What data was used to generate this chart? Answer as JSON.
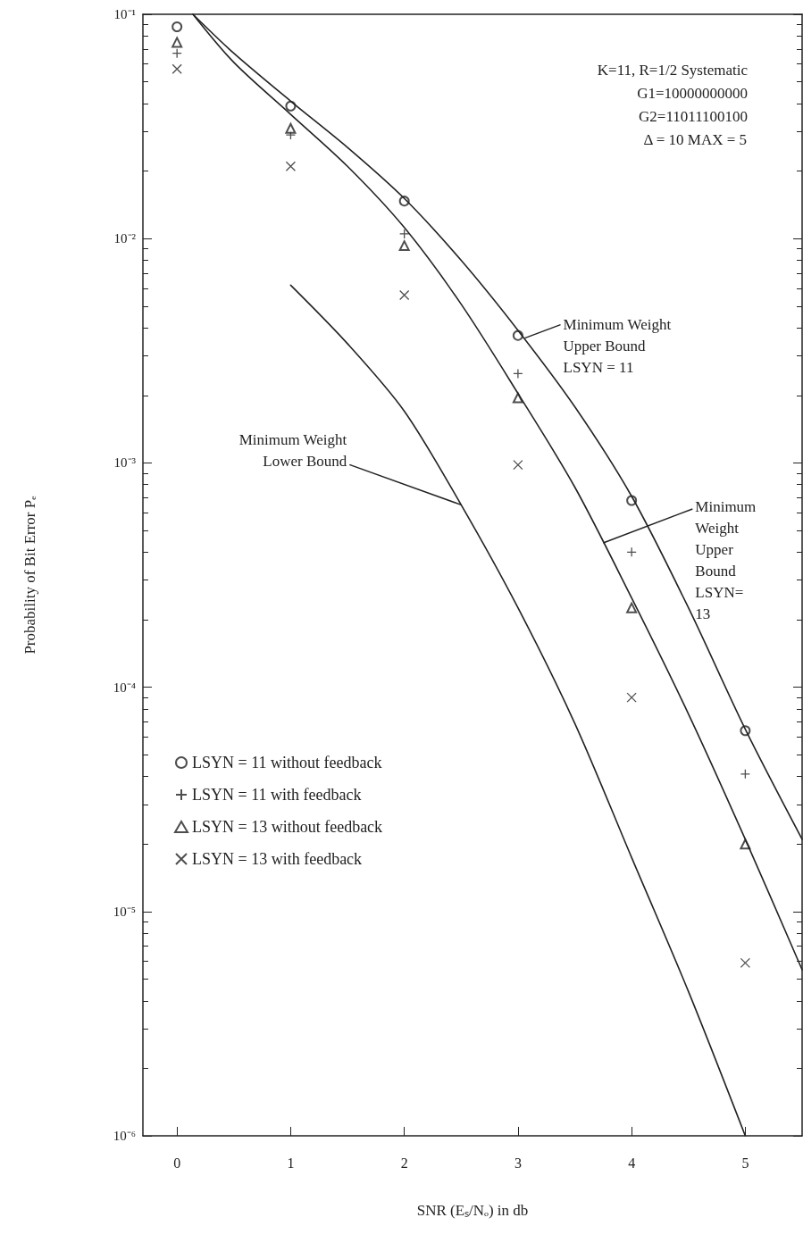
{
  "chart_data": {
    "type": "scatter",
    "xlabel": "SNR (Eₛ/Nₒ) in db",
    "ylabel": "Probability of Bit Error Pₑ",
    "xlim": [
      -0.3,
      5.5
    ],
    "xticks": [
      0,
      1,
      2,
      3,
      4,
      5
    ],
    "ylim": [
      1e-06,
      0.1
    ],
    "yticks": [
      {
        "value": 0.1,
        "label": "10⁻¹"
      },
      {
        "value": 0.01,
        "label": "10⁻²"
      },
      {
        "value": 0.001,
        "label": "10⁻³"
      },
      {
        "value": 0.0001,
        "label": "10⁻⁴"
      },
      {
        "value": 1e-05,
        "label": "10⁻⁵"
      },
      {
        "value": 1e-06,
        "label": "10⁻⁶"
      }
    ],
    "log": "y",
    "grid": false,
    "legend": "bottom left",
    "x": [
      0,
      1,
      2,
      3,
      4,
      5
    ],
    "series": [
      {
        "name": "LSYN = 11 without feedback",
        "color": "#222222",
        "marker": "circle",
        "values": [
          0.088,
          0.039,
          0.0147,
          0.0037,
          0.00068,
          6.4e-05
        ]
      },
      {
        "name": "LSYN = 11 with feedback",
        "color": "#222222",
        "marker": "plus",
        "values": [
          0.067,
          0.029,
          0.0105,
          0.0025,
          0.0004,
          4.1e-05
        ]
      },
      {
        "name": "LSYN = 13 without feedback",
        "color": "#222222",
        "marker": "triangle",
        "values": [
          0.075,
          0.031,
          0.0093,
          0.00195,
          0.000226,
          2e-05
        ]
      },
      {
        "name": "LSYN = 13 with feedback",
        "color": "#222222",
        "marker": "cross",
        "values": [
          0.057,
          0.021,
          0.0056,
          0.00098,
          9e-05,
          5.9e-06
        ]
      },
      {
        "type": "line",
        "color": "#222222",
        "marker": "none",
        "x": [
          0.14,
          0.5,
          1,
          1.5,
          2,
          2.5,
          3,
          3.5,
          4,
          4.5,
          5,
          5.5
        ],
        "values": [
          0.1,
          0.067,
          0.041,
          0.0255,
          0.0151,
          0.008,
          0.0039,
          0.00178,
          0.00071,
          0.000226,
          6.5e-05,
          2.1e-05
        ]
      },
      {
        "type": "line",
        "color": "#222222",
        "marker": "none",
        "x": [
          0.14,
          0.5,
          1,
          1.5,
          2,
          2.5,
          3,
          3.5,
          4,
          4.5,
          5,
          5.5
        ],
        "values": [
          0.1,
          0.061,
          0.0358,
          0.021,
          0.0112,
          0.0051,
          0.00204,
          0.00078,
          0.00025,
          7.6e-05,
          2.1e-05,
          5.5e-06
        ]
      },
      {
        "type": "line",
        "color": "#222222",
        "marker": "none",
        "x": [
          1,
          1.5,
          2,
          2.5,
          3,
          3.5,
          4,
          4.5,
          5
        ],
        "values": [
          0.0062,
          0.0034,
          0.0017,
          0.00065,
          0.000226,
          6.9e-05,
          1.74e-05,
          4.4e-06,
          1e-06
        ]
      }
    ],
    "annotations": [
      "K=11, R=1/2 Systematic",
      "G1=10000000000",
      "G2=11011100100",
      "Δ = 10 MAX = 5",
      {
        "text": "Minimum Weight\nUpper Bound\nLSYN = 11",
        "x": 3.06,
        "y": 0.0036
      },
      {
        "text": "Minimum\nWeight\nUpper\nBound\nLSYN=\n13",
        "x": 3.75,
        "y": 0.00044
      },
      {
        "text": "Minimum Weight\nLower Bound",
        "x": 2.5,
        "y": 0.00065
      }
    ]
  }
}
